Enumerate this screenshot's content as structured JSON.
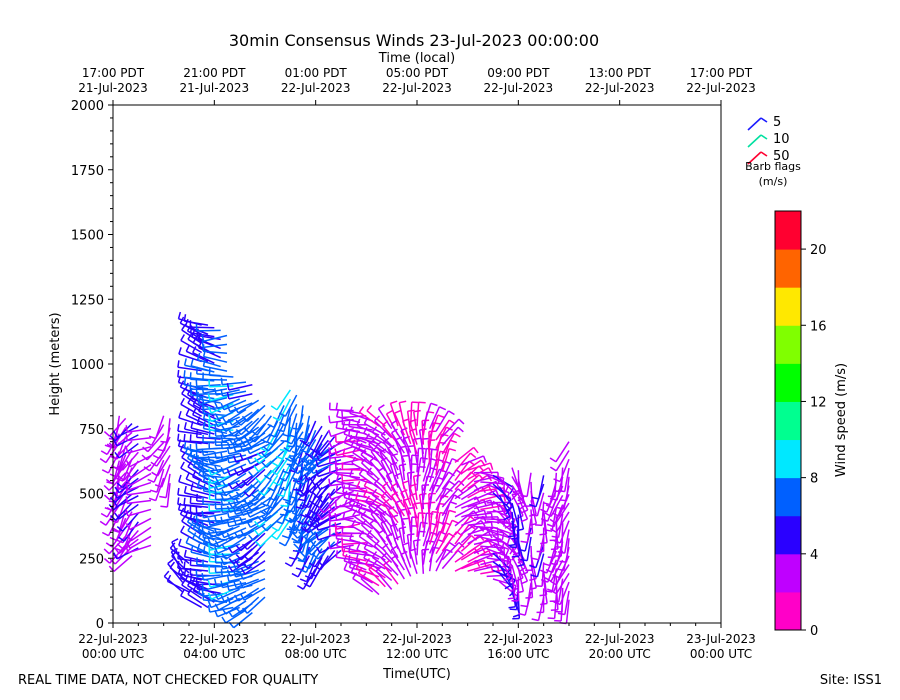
{
  "chart_data": {
    "type": "wind-barb",
    "title": "30min Consensus Winds 23-Jul-2023 00:00:00",
    "top_axis_label": "Time (local)",
    "xlabel": "Time(UTC)",
    "ylabel": "Height (meters)",
    "x_range_hours": [
      0,
      48
    ],
    "ylim": [
      0,
      2000
    ],
    "y_ticks": [
      0,
      250,
      500,
      750,
      1000,
      1250,
      1500,
      1750,
      2000
    ],
    "x_ticks_utc": [
      {
        "h": 0,
        "line1": "22-Jul-2023",
        "line2": "00:00 UTC"
      },
      {
        "h": 8,
        "line1": "22-Jul-2023",
        "line2": "04:00 UTC"
      },
      {
        "h": 16,
        "line1": "22-Jul-2023",
        "line2": "08:00 UTC"
      },
      {
        "h": 24,
        "line1": "22-Jul-2023",
        "line2": "12:00 UTC"
      },
      {
        "h": 32,
        "line1": "22-Jul-2023",
        "line2": "16:00 UTC"
      },
      {
        "h": 40,
        "line1": "22-Jul-2023",
        "line2": "20:00 UTC"
      },
      {
        "h": 48,
        "line1": "23-Jul-2023",
        "line2": "00:00 UTC"
      }
    ],
    "x_ticks_local": [
      {
        "h": 0,
        "line1": "17:00 PDT",
        "line2": "21-Jul-2023"
      },
      {
        "h": 8,
        "line1": "21:00 PDT",
        "line2": "21-Jul-2023"
      },
      {
        "h": 16,
        "line1": "01:00 PDT",
        "line2": "22-Jul-2023"
      },
      {
        "h": 24,
        "line1": "05:00 PDT",
        "line2": "22-Jul-2023"
      },
      {
        "h": 32,
        "line1": "09:00 PDT",
        "line2": "22-Jul-2023"
      },
      {
        "h": 40,
        "line1": "13:00 PDT",
        "line2": "22-Jul-2023"
      },
      {
        "h": 48,
        "line1": "17:00 PDT",
        "line2": "22-Jul-2023"
      }
    ],
    "legend": {
      "items": [
        {
          "label": "5",
          "color": "#1a1aff"
        },
        {
          "label": "10",
          "color": "#00e0a0"
        },
        {
          "label": "50",
          "color": "#ff0030"
        }
      ],
      "title1": "Barb flags",
      "title2": "(m/s)"
    },
    "colorbar": {
      "label": "Wind speed (m/s)",
      "min": 0,
      "max": 22,
      "step": 2,
      "colors": [
        "#ff00c8",
        "#bf00ff",
        "#2a00ff",
        "#0060ff",
        "#00e8ff",
        "#00ff90",
        "#00ff00",
        "#80ff00",
        "#ffe800",
        "#ff6400",
        "#ff0030"
      ],
      "ticks": [
        0,
        4,
        8,
        12,
        16,
        20
      ]
    },
    "columns": [
      {
        "t": 0.5,
        "zmin": 420,
        "zmax": 800,
        "speed": 3,
        "dir": 200
      },
      {
        "t": 1.0,
        "zmin": 300,
        "zmax": 790,
        "speed": 3,
        "dir": 210
      },
      {
        "t": 1.5,
        "zmin": 260,
        "zmax": 770,
        "speed": 3.5,
        "dir": 215
      },
      {
        "t": 2.0,
        "zmin": 290,
        "zmax": 760,
        "speed": 4.5,
        "dir": 230
      },
      {
        "t": 3.0,
        "zmin": 300,
        "zmax": 750,
        "speed": 3,
        "dir": 250
      },
      {
        "t": 4.0,
        "zmin": 560,
        "zmax": 800,
        "speed": 3,
        "dir": 210
      },
      {
        "t": 4.5,
        "zmin": 540,
        "zmax": 790,
        "speed": 3,
        "dir": 200
      },
      {
        "t": 5.5,
        "zmin": 120,
        "zmax": 230,
        "speed": 4,
        "dir": 320
      },
      {
        "t": 6.0,
        "zmin": 120,
        "zmax": 230,
        "speed": 5,
        "dir": 300
      },
      {
        "t": 7.0,
        "zmin": 60,
        "zmax": 1150,
        "speed": 5,
        "dir": 290
      },
      {
        "t": 7.5,
        "zmin": 60,
        "zmax": 1150,
        "speed": 5.5,
        "dir": 290
      },
      {
        "t": 8.0,
        "zmin": 80,
        "zmax": 1140,
        "speed": 6,
        "dir": 285
      },
      {
        "t": 8.5,
        "zmin": 80,
        "zmax": 1130,
        "speed": 6.5,
        "dir": 280
      },
      {
        "t": 9.0,
        "zmin": 80,
        "zmax": 1110,
        "speed": 7,
        "dir": 270
      },
      {
        "t": 9.5,
        "zmin": 60,
        "zmax": 950,
        "speed": 8.5,
        "dir": 260
      },
      {
        "t": 10.0,
        "zmin": 60,
        "zmax": 900,
        "speed": 7,
        "dir": 255
      },
      {
        "t": 10.5,
        "zmin": 50,
        "zmax": 930,
        "speed": 7,
        "dir": 250
      },
      {
        "t": 11.0,
        "zmin": 40,
        "zmax": 920,
        "speed": 6.5,
        "dir": 245
      },
      {
        "t": 11.5,
        "zmin": 100,
        "zmax": 860,
        "speed": 6.5,
        "dir": 240
      },
      {
        "t": 12.0,
        "zmin": 100,
        "zmax": 840,
        "speed": 6,
        "dir": 235
      },
      {
        "t": 12.5,
        "zmin": 380,
        "zmax": 800,
        "speed": 7,
        "dir": 230
      },
      {
        "t": 13.0,
        "zmin": 360,
        "zmax": 780,
        "speed": 8.5,
        "dir": 220
      },
      {
        "t": 13.5,
        "zmin": 420,
        "zmax": 840,
        "speed": 7,
        "dir": 215
      },
      {
        "t": 14.0,
        "zmin": 400,
        "zmax": 900,
        "speed": 8.5,
        "dir": 200
      },
      {
        "t": 14.5,
        "zmin": 380,
        "zmax": 880,
        "speed": 7,
        "dir": 195
      },
      {
        "t": 15.0,
        "zmin": 300,
        "zmax": 840,
        "speed": 6.5,
        "dir": 200
      },
      {
        "t": 15.5,
        "zmin": 260,
        "zmax": 800,
        "speed": 6.5,
        "dir": 205
      },
      {
        "t": 16.0,
        "zmin": 210,
        "zmax": 780,
        "speed": 6,
        "dir": 215
      },
      {
        "t": 16.5,
        "zmin": 220,
        "zmax": 760,
        "speed": 6,
        "dir": 220
      },
      {
        "t": 17.0,
        "zmin": 260,
        "zmax": 740,
        "speed": 5.5,
        "dir": 225
      },
      {
        "t": 17.5,
        "zmin": 280,
        "zmax": 720,
        "speed": 5.5,
        "dir": 230
      },
      {
        "t": 18.0,
        "zmin": 280,
        "zmax": 700,
        "speed": 4.5,
        "dir": 240
      },
      {
        "t": 19.0,
        "zmin": 300,
        "zmax": 820,
        "speed": 3,
        "dir": 260
      },
      {
        "t": 19.5,
        "zmin": 240,
        "zmax": 810,
        "speed": 2.5,
        "dir": 270
      },
      {
        "t": 20.0,
        "zmin": 170,
        "zmax": 800,
        "speed": 2.5,
        "dir": 280
      },
      {
        "t": 20.5,
        "zmin": 120,
        "zmax": 780,
        "speed": 3,
        "dir": 290
      },
      {
        "t": 21.0,
        "zmin": 110,
        "zmax": 760,
        "speed": 2.5,
        "dir": 300
      },
      {
        "t": 21.5,
        "zmin": 140,
        "zmax": 760,
        "speed": 2.5,
        "dir": 310
      },
      {
        "t": 22.0,
        "zmin": 130,
        "zmax": 750,
        "speed": 3,
        "dir": 320
      },
      {
        "t": 22.5,
        "zmin": 150,
        "zmax": 760,
        "speed": 2.5,
        "dir": 330
      },
      {
        "t": 23.0,
        "zmin": 170,
        "zmax": 760,
        "speed": 2.5,
        "dir": 340
      },
      {
        "t": 23.5,
        "zmin": 180,
        "zmax": 760,
        "speed": 2.5,
        "dir": 350
      },
      {
        "t": 24.0,
        "zmin": 190,
        "zmax": 760,
        "speed": 2,
        "dir": 355
      },
      {
        "t": 24.5,
        "zmin": 190,
        "zmax": 760,
        "speed": 2.5,
        "dir": 5
      },
      {
        "t": 25.0,
        "zmin": 200,
        "zmax": 750,
        "speed": 2,
        "dir": 10
      },
      {
        "t": 25.5,
        "zmin": 200,
        "zmax": 740,
        "speed": 2,
        "dir": 20
      },
      {
        "t": 26.0,
        "zmin": 210,
        "zmax": 720,
        "speed": 2.5,
        "dir": 30
      },
      {
        "t": 27.0,
        "zmin": 200,
        "zmax": 620,
        "speed": 2,
        "dir": 50
      },
      {
        "t": 27.5,
        "zmin": 210,
        "zmax": 610,
        "speed": 2.5,
        "dir": 60
      },
      {
        "t": 28.0,
        "zmin": 200,
        "zmax": 590,
        "speed": 2,
        "dir": 70
      },
      {
        "t": 28.5,
        "zmin": 200,
        "zmax": 580,
        "speed": 3,
        "dir": 80
      },
      {
        "t": 29.0,
        "zmin": 190,
        "zmax": 580,
        "speed": 2.5,
        "dir": 90
      },
      {
        "t": 29.5,
        "zmin": 180,
        "zmax": 570,
        "speed": 3,
        "dir": 100
      },
      {
        "t": 30.0,
        "zmin": 170,
        "zmax": 570,
        "speed": 3.5,
        "dir": 120
      },
      {
        "t": 30.5,
        "zmin": 160,
        "zmax": 560,
        "speed": 3.5,
        "dir": 140
      },
      {
        "t": 31.5,
        "zmin": 120,
        "zmax": 600,
        "speed": 3.5,
        "dir": 160
      },
      {
        "t": 32.0,
        "zmin": 110,
        "zmax": 590,
        "speed": 4,
        "dir": 170
      },
      {
        "t": 33.0,
        "zmin": 120,
        "zmax": 580,
        "speed": 3.5,
        "dir": 180
      },
      {
        "t": 34.0,
        "zmin": 100,
        "zmax": 570,
        "speed": 3.5,
        "dir": 185
      },
      {
        "t": 35.0,
        "zmin": 110,
        "zmax": 580,
        "speed": 3,
        "dir": 190
      },
      {
        "t": 35.5,
        "zmin": 100,
        "zmax": 600,
        "speed": 3,
        "dir": 195
      },
      {
        "t": 36.0,
        "zmin": 90,
        "zmax": 700,
        "speed": 3,
        "dir": 200
      }
    ]
  },
  "footer": {
    "left": "REAL TIME DATA, NOT CHECKED FOR QUALITY",
    "right": "Site: ISS1"
  }
}
